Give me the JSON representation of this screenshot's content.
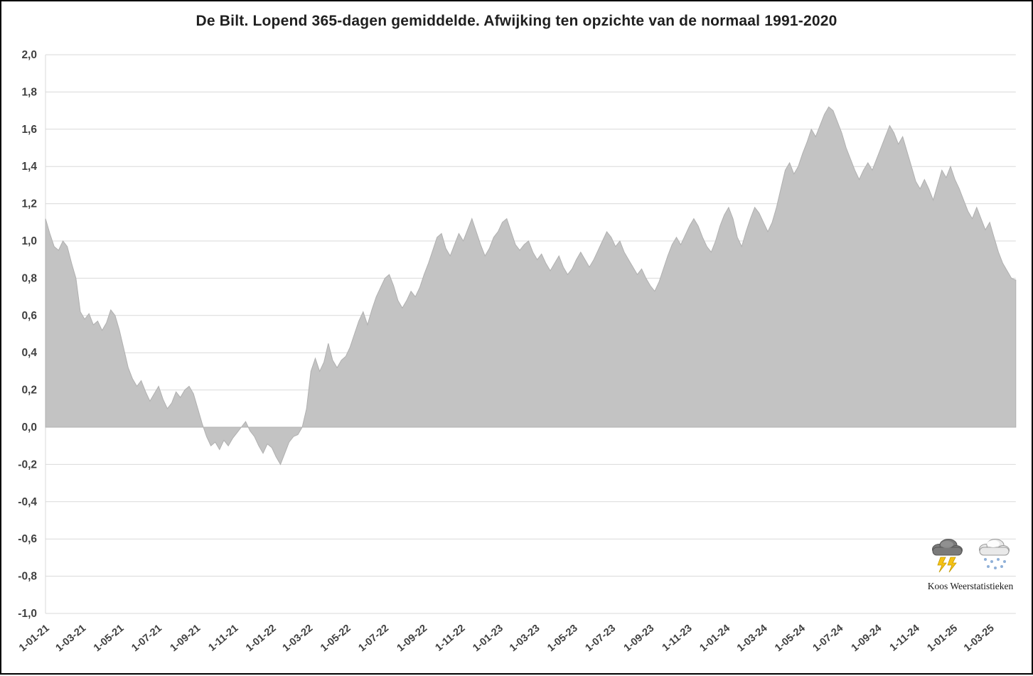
{
  "title": "De Bilt. Lopend 365-dagen gemiddelde. Afwijking ten opzichte van de normaal 1991-2020",
  "watermark": {
    "caption": "Koos Weerstatistieken",
    "icons": [
      "storm-cloud-icon",
      "snow-cloud-icon"
    ]
  },
  "colors": {
    "area_fill": "#c3c3c3",
    "area_edge": "#b0b0b0",
    "gridline": "#d9d9d9",
    "axis_text": "#404040",
    "title_text": "#1f1f1f",
    "background": "#ffffff",
    "border": "#000000"
  },
  "chart_data": {
    "type": "area",
    "title": "De Bilt. Lopend 365-dagen gemiddelde. Afwijking ten opzichte van de normaal 1991-2020",
    "xlabel": "",
    "ylabel": "",
    "ylim": [
      -1.0,
      2.0
    ],
    "grid": "horizontal",
    "legend": "none",
    "y_ticks": [
      "2,0",
      "1,8",
      "1,6",
      "1,4",
      "1,2",
      "1,0",
      "0,8",
      "0,6",
      "0,4",
      "0,2",
      "0,0",
      "-0,2",
      "-0,4",
      "-0,6",
      "-0,8",
      "-1,0"
    ],
    "y_tick_values": [
      2.0,
      1.8,
      1.6,
      1.4,
      1.2,
      1.0,
      0.8,
      0.6,
      0.4,
      0.2,
      0.0,
      -0.2,
      -0.4,
      -0.6,
      -0.8,
      -1.0
    ],
    "x_start_date": "2021-01-01",
    "x_step_days": 7,
    "x_ticks": [
      {
        "label": "1-01-21",
        "day": 0
      },
      {
        "label": "1-03-21",
        "day": 59
      },
      {
        "label": "1-05-21",
        "day": 120
      },
      {
        "label": "1-07-21",
        "day": 181
      },
      {
        "label": "1-09-21",
        "day": 243
      },
      {
        "label": "1-11-21",
        "day": 304
      },
      {
        "label": "1-01-22",
        "day": 365
      },
      {
        "label": "1-03-22",
        "day": 424
      },
      {
        "label": "1-05-22",
        "day": 485
      },
      {
        "label": "1-07-22",
        "day": 546
      },
      {
        "label": "1-09-22",
        "day": 608
      },
      {
        "label": "1-11-22",
        "day": 669
      },
      {
        "label": "1-01-23",
        "day": 730
      },
      {
        "label": "1-03-23",
        "day": 789
      },
      {
        "label": "1-05-23",
        "day": 850
      },
      {
        "label": "1-07-23",
        "day": 911
      },
      {
        "label": "1-09-23",
        "day": 973
      },
      {
        "label": "1-11-23",
        "day": 1034
      },
      {
        "label": "1-01-24",
        "day": 1095
      },
      {
        "label": "1-03-24",
        "day": 1155
      },
      {
        "label": "1-05-24",
        "day": 1216
      },
      {
        "label": "1-07-24",
        "day": 1277
      },
      {
        "label": "1-09-24",
        "day": 1339
      },
      {
        "label": "1-11-24",
        "day": 1400
      },
      {
        "label": "1-01-25",
        "day": 1461
      },
      {
        "label": "1-03-25",
        "day": 1520
      }
    ],
    "values": [
      1.12,
      1.04,
      0.97,
      0.95,
      1.0,
      0.97,
      0.88,
      0.8,
      0.62,
      0.58,
      0.61,
      0.55,
      0.57,
      0.52,
      0.56,
      0.63,
      0.6,
      0.52,
      0.42,
      0.32,
      0.26,
      0.22,
      0.25,
      0.19,
      0.14,
      0.18,
      0.22,
      0.15,
      0.1,
      0.13,
      0.19,
      0.16,
      0.2,
      0.22,
      0.18,
      0.1,
      0.02,
      -0.05,
      -0.1,
      -0.08,
      -0.12,
      -0.07,
      -0.1,
      -0.06,
      -0.03,
      0.0,
      0.03,
      -0.02,
      -0.05,
      -0.1,
      -0.14,
      -0.09,
      -0.11,
      -0.16,
      -0.2,
      -0.14,
      -0.08,
      -0.05,
      -0.04,
      0.0,
      0.1,
      0.3,
      0.37,
      0.3,
      0.35,
      0.45,
      0.36,
      0.32,
      0.36,
      0.38,
      0.43,
      0.5,
      0.57,
      0.62,
      0.55,
      0.63,
      0.7,
      0.75,
      0.8,
      0.82,
      0.76,
      0.68,
      0.64,
      0.68,
      0.73,
      0.7,
      0.75,
      0.82,
      0.88,
      0.95,
      1.02,
      1.04,
      0.96,
      0.92,
      0.98,
      1.04,
      1.0,
      1.06,
      1.12,
      1.05,
      0.98,
      0.92,
      0.96,
      1.02,
      1.05,
      1.1,
      1.12,
      1.05,
      0.98,
      0.95,
      0.98,
      1.0,
      0.94,
      0.9,
      0.93,
      0.88,
      0.84,
      0.88,
      0.92,
      0.86,
      0.82,
      0.85,
      0.9,
      0.94,
      0.9,
      0.86,
      0.9,
      0.95,
      1.0,
      1.05,
      1.02,
      0.97,
      1.0,
      0.94,
      0.9,
      0.86,
      0.82,
      0.85,
      0.8,
      0.76,
      0.73,
      0.78,
      0.85,
      0.92,
      0.98,
      1.02,
      0.98,
      1.03,
      1.08,
      1.12,
      1.08,
      1.02,
      0.97,
      0.94,
      1.0,
      1.08,
      1.14,
      1.18,
      1.12,
      1.02,
      0.97,
      1.05,
      1.12,
      1.18,
      1.15,
      1.1,
      1.05,
      1.1,
      1.18,
      1.28,
      1.38,
      1.42,
      1.36,
      1.4,
      1.47,
      1.53,
      1.6,
      1.56,
      1.62,
      1.68,
      1.72,
      1.7,
      1.64,
      1.58,
      1.5,
      1.44,
      1.38,
      1.33,
      1.38,
      1.42,
      1.38,
      1.44,
      1.5,
      1.56,
      1.62,
      1.58,
      1.52,
      1.56,
      1.48,
      1.4,
      1.32,
      1.28,
      1.33,
      1.28,
      1.22,
      1.3,
      1.38,
      1.34,
      1.4,
      1.33,
      1.28,
      1.22,
      1.16,
      1.12,
      1.18,
      1.12,
      1.06,
      1.1,
      1.02,
      0.94,
      0.88,
      0.84,
      0.8,
      0.79
    ]
  }
}
